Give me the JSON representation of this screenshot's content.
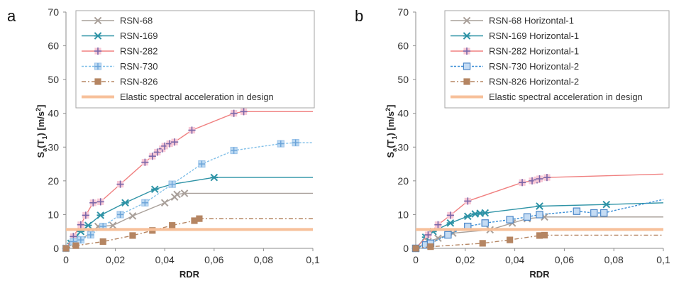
{
  "chart_data": [
    {
      "type": "line",
      "panel_label": "a",
      "xlabel": "RDR",
      "ylabel": "Sa(T1) [m/s2]",
      "ylabel_parts": {
        "main": "S",
        "sub1": "a",
        "mid": "(T",
        "sub2": "1",
        "after": ") [m/s",
        "sup": "2",
        "end": "]"
      },
      "xlim": [
        0,
        0.1
      ],
      "ylim": [
        0,
        70
      ],
      "xticks": [
        0,
        0.02,
        0.04,
        0.06,
        0.08,
        0.1
      ],
      "xtick_labels": [
        "0",
        "0,02",
        "0,04",
        "0,06",
        "0,08",
        "0,1"
      ],
      "yticks": [
        0,
        10,
        20,
        30,
        40,
        50,
        60,
        70
      ],
      "ytick_labels": [
        "0",
        "10",
        "20",
        "30",
        "40",
        "50",
        "60",
        "70"
      ],
      "grid": false,
      "legend_position": "top-left",
      "series": [
        {
          "name": "RSN-68",
          "color": "#a9a09a",
          "marker": "x",
          "dash": "",
          "points": [
            [
              0,
              0
            ],
            [
              0.004,
              1.8
            ],
            [
              0.01,
              4.5
            ],
            [
              0.013,
              6.5
            ],
            [
              0.019,
              6.8
            ],
            [
              0.027,
              9.6
            ],
            [
              0.04,
              13.5
            ],
            [
              0.044,
              15.2
            ],
            [
              0.045,
              16
            ],
            [
              0.048,
              16.3
            ]
          ],
          "tail": [
            0.1,
            16.3
          ]
        },
        {
          "name": "RSN-169",
          "color": "#2e93a6",
          "marker": "asterisk",
          "dash": "",
          "points": [
            [
              0,
              0
            ],
            [
              0.002,
              1.5
            ],
            [
              0.004,
              3.5
            ],
            [
              0.006,
              5
            ],
            [
              0.009,
              6.8
            ],
            [
              0.014,
              9.8
            ],
            [
              0.024,
              13.5
            ],
            [
              0.036,
              17.5
            ],
            [
              0.043,
              19
            ],
            [
              0.06,
              21
            ]
          ],
          "tail": [
            0.1,
            21
          ]
        },
        {
          "name": "RSN-282",
          "color": "#f08080",
          "marker": "plus",
          "dash": "",
          "points": [
            [
              0,
              0
            ],
            [
              0.003,
              3.5
            ],
            [
              0.006,
              7
            ],
            [
              0.008,
              9.8
            ],
            [
              0.011,
              13.5
            ],
            [
              0.014,
              13.8
            ],
            [
              0.022,
              19
            ],
            [
              0.032,
              25.5
            ],
            [
              0.035,
              27.3
            ],
            [
              0.037,
              28.5
            ],
            [
              0.039,
              29.5
            ],
            [
              0.04,
              30.3
            ],
            [
              0.042,
              31
            ],
            [
              0.044,
              31.5
            ],
            [
              0.051,
              35
            ],
            [
              0.068,
              40
            ],
            [
              0.072,
              40.5
            ]
          ],
          "tail": [
            0.1,
            40.5
          ]
        },
        {
          "name": "RSN-730",
          "color": "#80bfe8",
          "marker": "squareplus",
          "dash": "3,2",
          "points": [
            [
              0,
              0
            ],
            [
              0.003,
              2
            ],
            [
              0.006,
              2.5
            ],
            [
              0.01,
              4
            ],
            [
              0.015,
              6.5
            ],
            [
              0.022,
              10
            ],
            [
              0.032,
              13.5
            ],
            [
              0.043,
              19
            ],
            [
              0.055,
              25
            ],
            [
              0.068,
              29
            ],
            [
              0.087,
              31
            ],
            [
              0.093,
              31.3
            ]
          ],
          "tail": [
            0.1,
            31.3
          ]
        },
        {
          "name": "RSN-826",
          "color": "#b58562",
          "marker": "square",
          "dash": "6,3,2,3",
          "points": [
            [
              0,
              0
            ],
            [
              0.004,
              0.8
            ],
            [
              0.015,
              2
            ],
            [
              0.027,
              3.8
            ],
            [
              0.035,
              5.3
            ],
            [
              0.043,
              6.8
            ],
            [
              0.052,
              8.2
            ],
            [
              0.054,
              8.8
            ]
          ],
          "tail": [
            0.1,
            8.8
          ]
        },
        {
          "name": "Elastic spectral acceleration in design",
          "color": "#f7c09a",
          "marker": "none",
          "dash": "",
          "width": 4,
          "points": [
            [
              0,
              5.6
            ],
            [
              0.1,
              5.6
            ]
          ]
        }
      ]
    },
    {
      "type": "line",
      "panel_label": "b",
      "xlabel": "RDR",
      "ylabel": "Sa(T1) [m/s2]",
      "ylabel_parts": {
        "main": "S",
        "sub1": "a",
        "mid": "(T",
        "sub2": "1",
        "after": ") [m/s",
        "sup": "2",
        "end": "]"
      },
      "xlim": [
        0,
        0.1
      ],
      "ylim": [
        0,
        70
      ],
      "xticks": [
        0,
        0.02,
        0.04,
        0.06,
        0.08,
        0.1
      ],
      "xtick_labels": [
        "0",
        "0,02",
        "0,04",
        "0,06",
        "0,08",
        "0,1"
      ],
      "yticks": [
        0,
        10,
        20,
        30,
        40,
        50,
        60,
        70
      ],
      "ytick_labels": [
        "0",
        "10",
        "20",
        "30",
        "40",
        "50",
        "60",
        "70"
      ],
      "grid": false,
      "legend_position": "top-right",
      "series": [
        {
          "name": "RSN-68 Horizontal-1",
          "color": "#a9a09a",
          "marker": "x",
          "dash": "",
          "points": [
            [
              0,
              0
            ],
            [
              0.005,
              2
            ],
            [
              0.009,
              3
            ],
            [
              0.015,
              4.5
            ],
            [
              0.03,
              5.5
            ],
            [
              0.039,
              7.5
            ],
            [
              0.045,
              8.8
            ],
            [
              0.052,
              9.3
            ]
          ],
          "tail": [
            0.1,
            9.3
          ]
        },
        {
          "name": "RSN-169 Horizontal-1",
          "color": "#2e93a6",
          "marker": "asterisk",
          "dash": "",
          "points": [
            [
              0,
              0
            ],
            [
              0.004,
              3.3
            ],
            [
              0.007,
              5
            ],
            [
              0.014,
              7.5
            ],
            [
              0.021,
              9.5
            ],
            [
              0.024,
              10.2
            ],
            [
              0.026,
              10.4
            ],
            [
              0.028,
              10.5
            ],
            [
              0.05,
              12.5
            ],
            [
              0.077,
              13
            ]
          ],
          "tail": [
            0.1,
            13.5
          ]
        },
        {
          "name": "RSN-282 Horizontal-1",
          "color": "#f08080",
          "marker": "plus",
          "dash": "",
          "points": [
            [
              0,
              0
            ],
            [
              0.005,
              4
            ],
            [
              0.009,
              7
            ],
            [
              0.014,
              9.8
            ],
            [
              0.021,
              14
            ],
            [
              0.043,
              19.5
            ],
            [
              0.047,
              20
            ],
            [
              0.049,
              20.3
            ],
            [
              0.05,
              20.6
            ],
            [
              0.053,
              21
            ]
          ],
          "tail": [
            0.1,
            22
          ]
        },
        {
          "name": "RSN-730 Horizontal-2",
          "color": "#3c8fd6",
          "marker": "squarefill",
          "dash": "3,2",
          "points": [
            [
              0,
              0
            ],
            [
              0.004,
              1
            ],
            [
              0.006,
              1.5
            ],
            [
              0.013,
              4
            ],
            [
              0.021,
              6.5
            ],
            [
              0.028,
              7.5
            ],
            [
              0.038,
              8.5
            ],
            [
              0.045,
              9.3
            ],
            [
              0.05,
              10
            ],
            [
              0.065,
              11
            ],
            [
              0.072,
              10.5
            ],
            [
              0.076,
              10.5
            ]
          ],
          "tail": [
            0.1,
            14.5
          ]
        },
        {
          "name": "RSN-826 Horizontal-2",
          "color": "#b58562",
          "marker": "square",
          "dash": "6,3,2,3",
          "points": [
            [
              0,
              0
            ],
            [
              0.006,
              0.5
            ],
            [
              0.027,
              1.5
            ],
            [
              0.038,
              2.5
            ],
            [
              0.05,
              3.8
            ],
            [
              0.052,
              3.9
            ]
          ],
          "tail": [
            0.1,
            3.9
          ]
        },
        {
          "name": "Elastic spectral acceleration in design",
          "color": "#f7c09a",
          "marker": "none",
          "dash": "",
          "width": 4,
          "points": [
            [
              0,
              5.6
            ],
            [
              0.1,
              5.6
            ]
          ]
        }
      ]
    }
  ]
}
